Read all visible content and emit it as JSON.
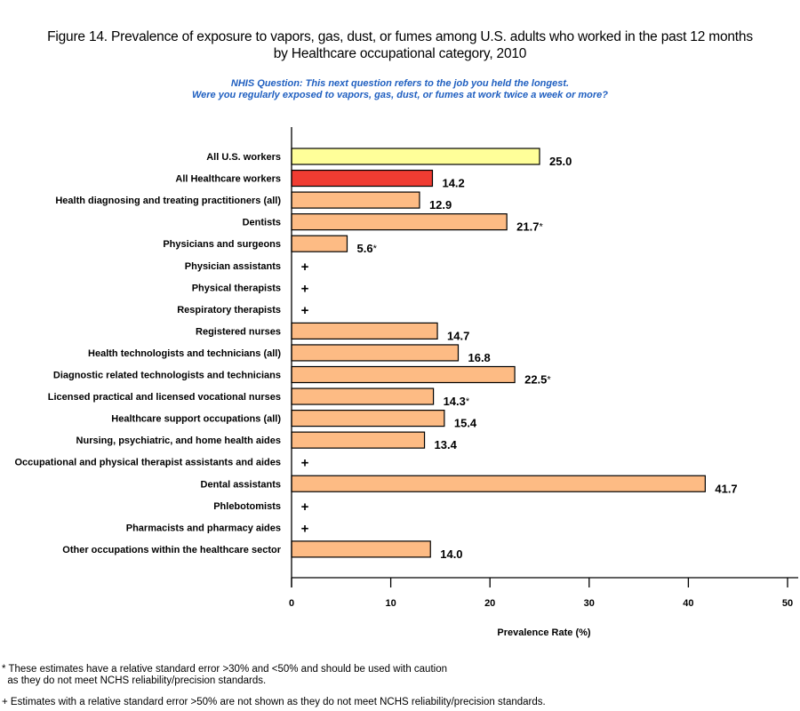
{
  "title": {
    "line1": "Figure 14. Prevalence of exposure to vapors, gas, dust, or fumes among U.S. adults who worked in the past 12 months",
    "line2": "by Healthcare occupational category, 2010"
  },
  "question": {
    "line1": "NHIS Question: This next question refers to the job you held the longest.",
    "line2": "Were you regularly exposed to vapors, gas, dust, or fumes at work twice a week or more?"
  },
  "footnotes": {
    "star_line1": "* These estimates have a relative standard error >30% and <50% and should be used with caution",
    "star_line2": "  as they do not meet NCHS reliability/precision standards.",
    "plus_line": "+ Estimates with a relative standard error >50% are not shown as they do not meet NCHS reliability/precision standards."
  },
  "colors": {
    "all_us": "#ffff99",
    "all_healthcare": "#f03c32",
    "subgroup": "#fdbb84",
    "question_text": "#1f5fc0"
  },
  "chart_data": {
    "type": "bar",
    "orientation": "horizontal",
    "title": "Figure 14. Prevalence of exposure to vapors, gas, dust, or fumes among U.S. adults who worked in the past 12 months by Healthcare occupational category, 2010",
    "xlabel": "Prevalence Rate (%)",
    "ylabel": "",
    "xlim": [
      0,
      50
    ],
    "xticks": [
      0,
      10,
      20,
      30,
      40,
      50
    ],
    "grid": false,
    "legend": "none",
    "categories": [
      "All U.S. workers",
      "All Healthcare workers",
      "Health diagnosing and treating practitioners (all)",
      "Dentists",
      "Physicians and surgeons",
      "Physician assistants",
      "Physical therapists",
      "Respiratory therapists",
      "Registered nurses",
      "Health technologists and technicians (all)",
      "Diagnostic related technologists and technicians",
      "Licensed practical and licensed vocational nurses",
      "Healthcare support occupations (all)",
      "Nursing, psychiatric, and home health aides",
      "Occupational and physical therapist assistants and aides",
      "Dental assistants",
      "Phlebotomists",
      "Pharmacists and pharmacy aides",
      "Other occupations within the healthcare sector"
    ],
    "values": [
      25.0,
      14.2,
      12.9,
      21.7,
      5.6,
      null,
      null,
      null,
      14.7,
      16.8,
      22.5,
      14.3,
      15.4,
      13.4,
      null,
      41.7,
      null,
      null,
      14.0
    ],
    "value_labels": [
      "25.0",
      "14.2",
      "12.9",
      "21.7",
      "5.6",
      "+",
      "+",
      "+",
      "14.7",
      "16.8",
      "22.5",
      "14.3",
      "15.4",
      "13.4",
      "+",
      "41.7",
      "+",
      "+",
      "14.0"
    ],
    "flags": [
      "",
      "",
      "",
      "*",
      "*",
      "+",
      "+",
      "+",
      "",
      "",
      "*",
      "*",
      "",
      "",
      "+",
      "",
      "+",
      "+",
      ""
    ],
    "bar_color_groups": [
      "all_us",
      "all_healthcare",
      "subgroup",
      "subgroup",
      "subgroup",
      "subgroup",
      "subgroup",
      "subgroup",
      "subgroup",
      "subgroup",
      "subgroup",
      "subgroup",
      "subgroup",
      "subgroup",
      "subgroup",
      "subgroup",
      "subgroup",
      "subgroup",
      "subgroup"
    ]
  }
}
